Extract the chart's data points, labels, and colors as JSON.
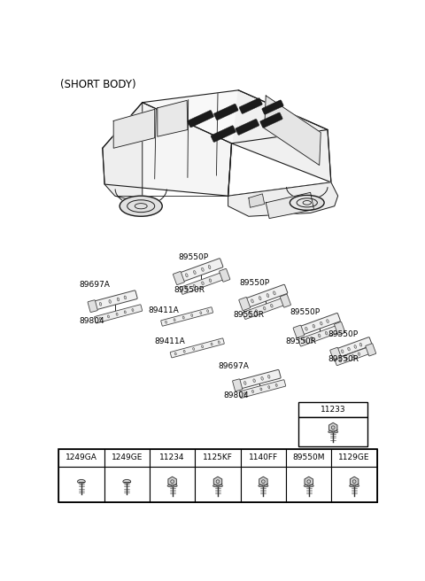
{
  "title": "(SHORT BODY)",
  "bg_color": "#ffffff",
  "fig_width": 4.8,
  "fig_height": 6.56,
  "dpi": 100,
  "bottom_labels": [
    "1249GA",
    "1249GE",
    "11234",
    "1125KF",
    "1140FF",
    "89550M",
    "1129GE"
  ],
  "special_label": "11233",
  "font_size_part": 6.5,
  "font_size_bottom": 6.5,
  "font_size_title": 8.5,
  "line_color": "#000000",
  "text_color": "#000000",
  "car_color": "#1a1a1a",
  "part_color": "#444444",
  "part_face": "#e8e8e8",
  "slot_color": "#111111"
}
